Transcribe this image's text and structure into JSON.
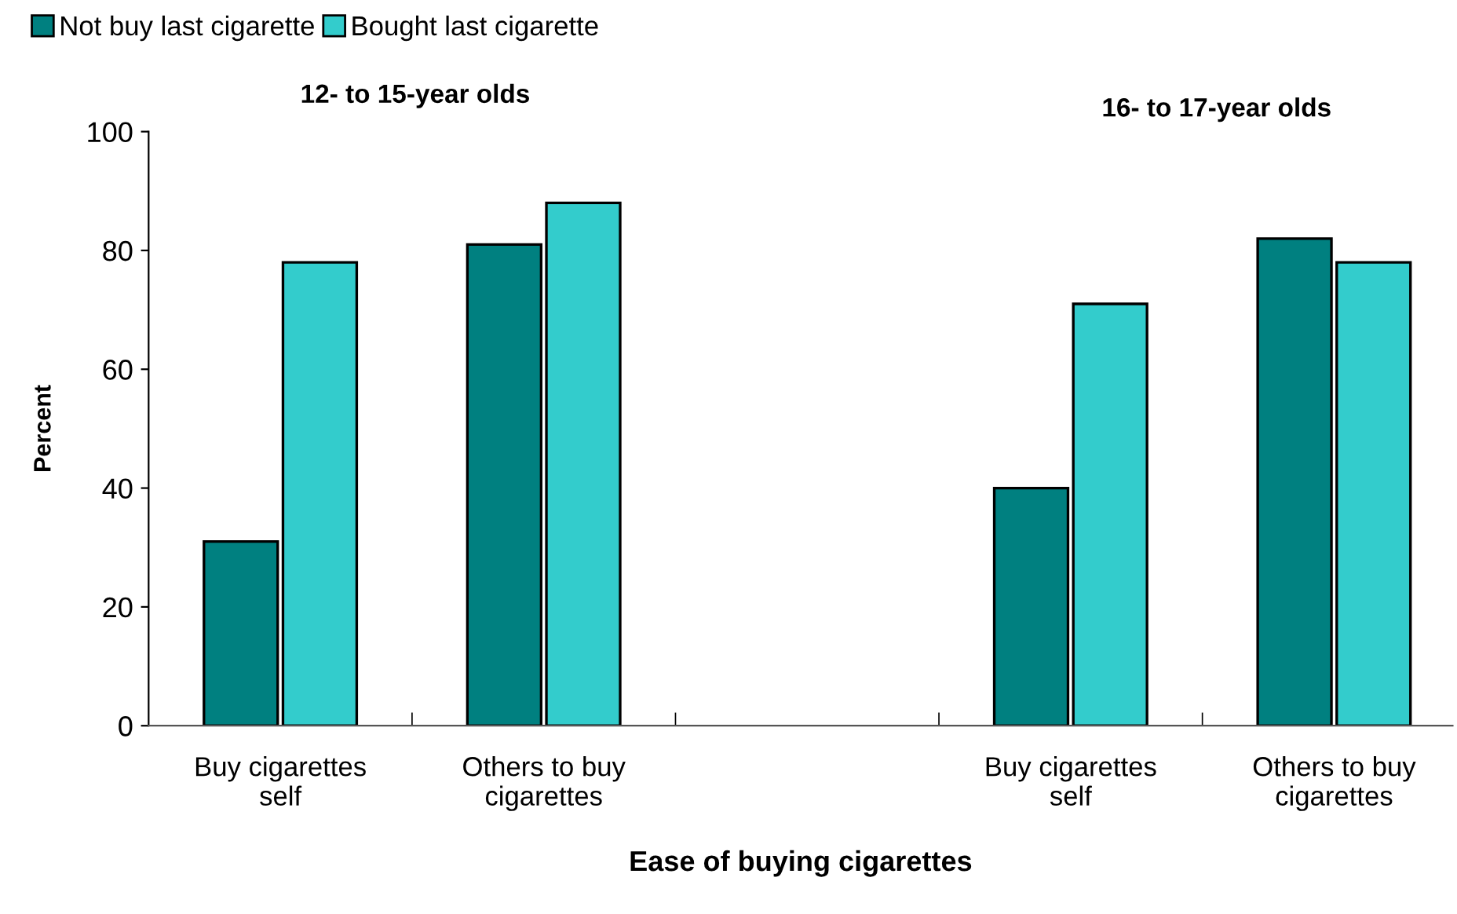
{
  "chart_data": {
    "type": "bar",
    "xlabel": "Ease of buying cigarettes",
    "ylabel": "Percent",
    "categories": [
      "Buy cigarettes\nself",
      "Others to buy\ncigarettes",
      null,
      "Buy cigarettes\nself",
      "Others to buy\ncigarettes"
    ],
    "series": [
      {
        "name": "Not buy last cigarette",
        "color": "#008080",
        "values": [
          31,
          81,
          null,
          40,
          82
        ]
      },
      {
        "name": "Bought last cigarette",
        "color": "#33cccc",
        "values": [
          78,
          88,
          null,
          71,
          78
        ]
      }
    ],
    "annotations": [
      "12- to 15-year olds",
      "16- to 17-year olds"
    ],
    "ylim": [
      0,
      100
    ],
    "yticks": [
      0,
      20,
      40,
      60,
      80,
      100
    ],
    "legend": "top left",
    "grid": false
  }
}
